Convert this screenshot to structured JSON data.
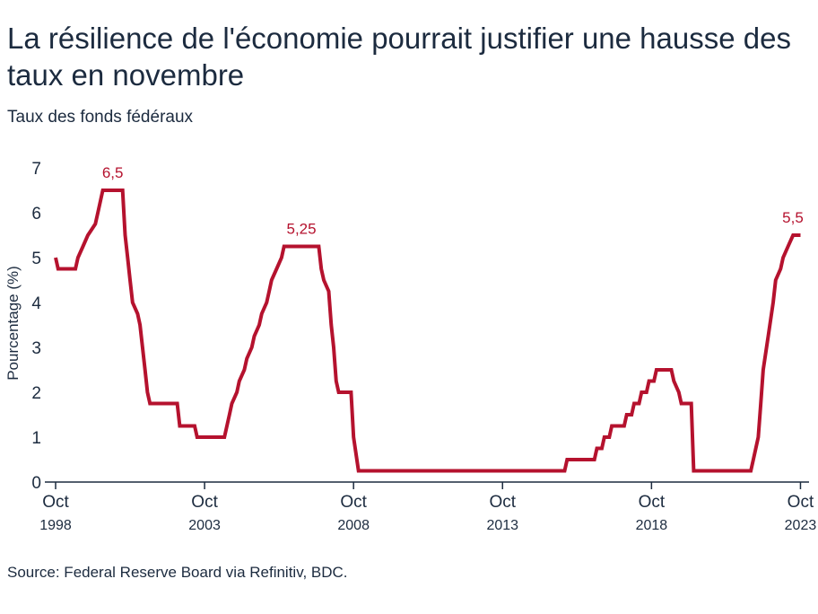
{
  "header": {
    "title": "La résilience de l'économie pourrait justifier une hausse des taux en novembre",
    "subtitle": "Taux des fonds fédéraux"
  },
  "footer": {
    "source": "Source: Federal Reserve Board via Refinitiv, BDC."
  },
  "colors": {
    "line": "#b5122e",
    "text": "#1c2b3f",
    "axis": "#1c2b3f"
  },
  "chart_data": {
    "type": "line",
    "title": "La résilience de l'économie pourrait justifier une hausse des taux en novembre",
    "subtitle": "Taux des fonds fédéraux",
    "xlabel": "",
    "ylabel": "Pourcentage (%)",
    "ylim": [
      0,
      7
    ],
    "yticks": [
      0,
      1,
      2,
      3,
      4,
      5,
      6,
      7
    ],
    "xlim": [
      "1998-10",
      "2023-12"
    ],
    "xticks": [
      {
        "date": "1998-10",
        "month": "Oct",
        "year": "1998"
      },
      {
        "date": "2003-10",
        "month": "Oct",
        "year": "2003"
      },
      {
        "date": "2008-10",
        "month": "Oct",
        "year": "2008"
      },
      {
        "date": "2013-10",
        "month": "Oct",
        "year": "2013"
      },
      {
        "date": "2018-10",
        "month": "Oct",
        "year": "2018"
      },
      {
        "date": "2023-10",
        "month": "Oct",
        "year": "2023"
      }
    ],
    "grid": false,
    "series": [
      {
        "name": "",
        "points": [
          [
            "1998-10",
            5.0
          ],
          [
            "1998-11",
            4.75
          ],
          [
            "1999-06",
            4.75
          ],
          [
            "1999-07",
            5.0
          ],
          [
            "1999-09",
            5.25
          ],
          [
            "1999-11",
            5.5
          ],
          [
            "2000-02",
            5.75
          ],
          [
            "2000-03",
            6.0
          ],
          [
            "2000-05",
            6.5
          ],
          [
            "2001-01",
            6.5
          ],
          [
            "2001-02",
            5.5
          ],
          [
            "2001-03",
            5.0
          ],
          [
            "2001-04",
            4.5
          ],
          [
            "2001-05",
            4.0
          ],
          [
            "2001-07",
            3.75
          ],
          [
            "2001-08",
            3.5
          ],
          [
            "2001-09",
            3.0
          ],
          [
            "2001-10",
            2.5
          ],
          [
            "2001-11",
            2.0
          ],
          [
            "2001-12",
            1.75
          ],
          [
            "2002-11",
            1.75
          ],
          [
            "2002-12",
            1.25
          ],
          [
            "2003-06",
            1.25
          ],
          [
            "2003-07",
            1.0
          ],
          [
            "2004-06",
            1.0
          ],
          [
            "2004-07",
            1.25
          ],
          [
            "2004-08",
            1.5
          ],
          [
            "2004-09",
            1.75
          ],
          [
            "2004-11",
            2.0
          ],
          [
            "2004-12",
            2.25
          ],
          [
            "2005-02",
            2.5
          ],
          [
            "2005-03",
            2.75
          ],
          [
            "2005-05",
            3.0
          ],
          [
            "2005-06",
            3.25
          ],
          [
            "2005-08",
            3.5
          ],
          [
            "2005-09",
            3.75
          ],
          [
            "2005-11",
            4.0
          ],
          [
            "2005-12",
            4.25
          ],
          [
            "2006-01",
            4.5
          ],
          [
            "2006-03",
            4.75
          ],
          [
            "2006-05",
            5.0
          ],
          [
            "2006-06",
            5.25
          ],
          [
            "2007-08",
            5.25
          ],
          [
            "2007-09",
            4.75
          ],
          [
            "2007-10",
            4.5
          ],
          [
            "2007-12",
            4.25
          ],
          [
            "2008-01",
            3.5
          ],
          [
            "2008-02",
            3.0
          ],
          [
            "2008-03",
            2.25
          ],
          [
            "2008-04",
            2.0
          ],
          [
            "2008-09",
            2.0
          ],
          [
            "2008-10",
            1.0
          ],
          [
            "2008-12",
            0.25
          ],
          [
            "2015-11",
            0.25
          ],
          [
            "2015-12",
            0.5
          ],
          [
            "2016-11",
            0.5
          ],
          [
            "2016-12",
            0.75
          ],
          [
            "2017-02",
            0.75
          ],
          [
            "2017-03",
            1.0
          ],
          [
            "2017-05",
            1.0
          ],
          [
            "2017-06",
            1.25
          ],
          [
            "2017-11",
            1.25
          ],
          [
            "2017-12",
            1.5
          ],
          [
            "2018-02",
            1.5
          ],
          [
            "2018-03",
            1.75
          ],
          [
            "2018-05",
            1.75
          ],
          [
            "2018-06",
            2.0
          ],
          [
            "2018-08",
            2.0
          ],
          [
            "2018-09",
            2.25
          ],
          [
            "2018-11",
            2.25
          ],
          [
            "2018-12",
            2.5
          ],
          [
            "2019-06",
            2.5
          ],
          [
            "2019-07",
            2.25
          ],
          [
            "2019-09",
            2.0
          ],
          [
            "2019-10",
            1.75
          ],
          [
            "2020-02",
            1.75
          ],
          [
            "2020-03",
            0.25
          ],
          [
            "2022-02",
            0.25
          ],
          [
            "2022-03",
            0.5
          ],
          [
            "2022-05",
            1.0
          ],
          [
            "2022-06",
            1.75
          ],
          [
            "2022-07",
            2.5
          ],
          [
            "2022-09",
            3.25
          ],
          [
            "2022-11",
            4.0
          ],
          [
            "2022-12",
            4.5
          ],
          [
            "2023-02",
            4.75
          ],
          [
            "2023-03",
            5.0
          ],
          [
            "2023-05",
            5.25
          ],
          [
            "2023-07",
            5.5
          ],
          [
            "2023-10",
            5.5
          ]
        ]
      }
    ],
    "annotations": [
      {
        "date": "2000-09",
        "value": 6.5,
        "label": "6,5"
      },
      {
        "date": "2007-01",
        "value": 5.25,
        "label": "5,25"
      },
      {
        "date": "2023-07",
        "value": 5.5,
        "label": "5,5"
      }
    ]
  }
}
